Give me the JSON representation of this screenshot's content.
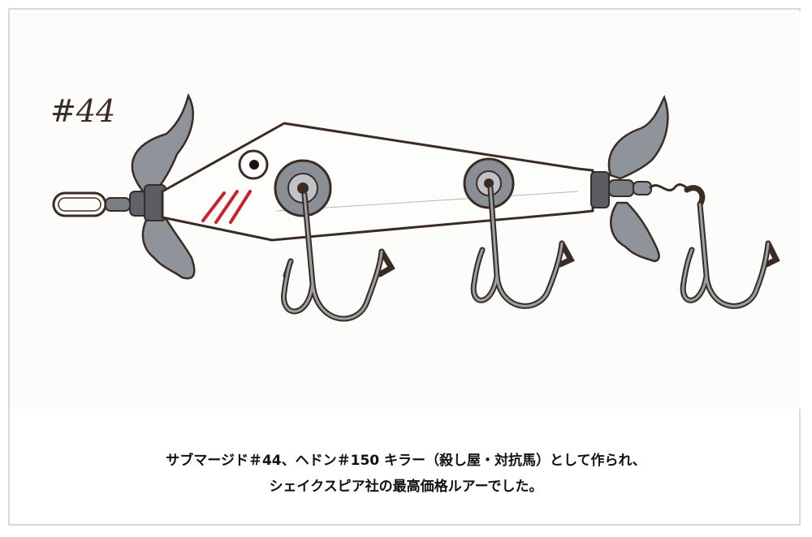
{
  "illustration": {
    "label": "#44",
    "colors": {
      "ink": "#3a2c24",
      "metal": "#8f949a",
      "metal_dark": "#5a5e63",
      "gill": "#c9242c",
      "paper": "#fbfbf8"
    }
  },
  "caption": {
    "line1": "サブマージド＃44、ヘドン＃150 キラー（殺し屋・対抗馬）として作られ、",
    "line2": "シェイクスピア社の最高価格ルアーでした。"
  }
}
